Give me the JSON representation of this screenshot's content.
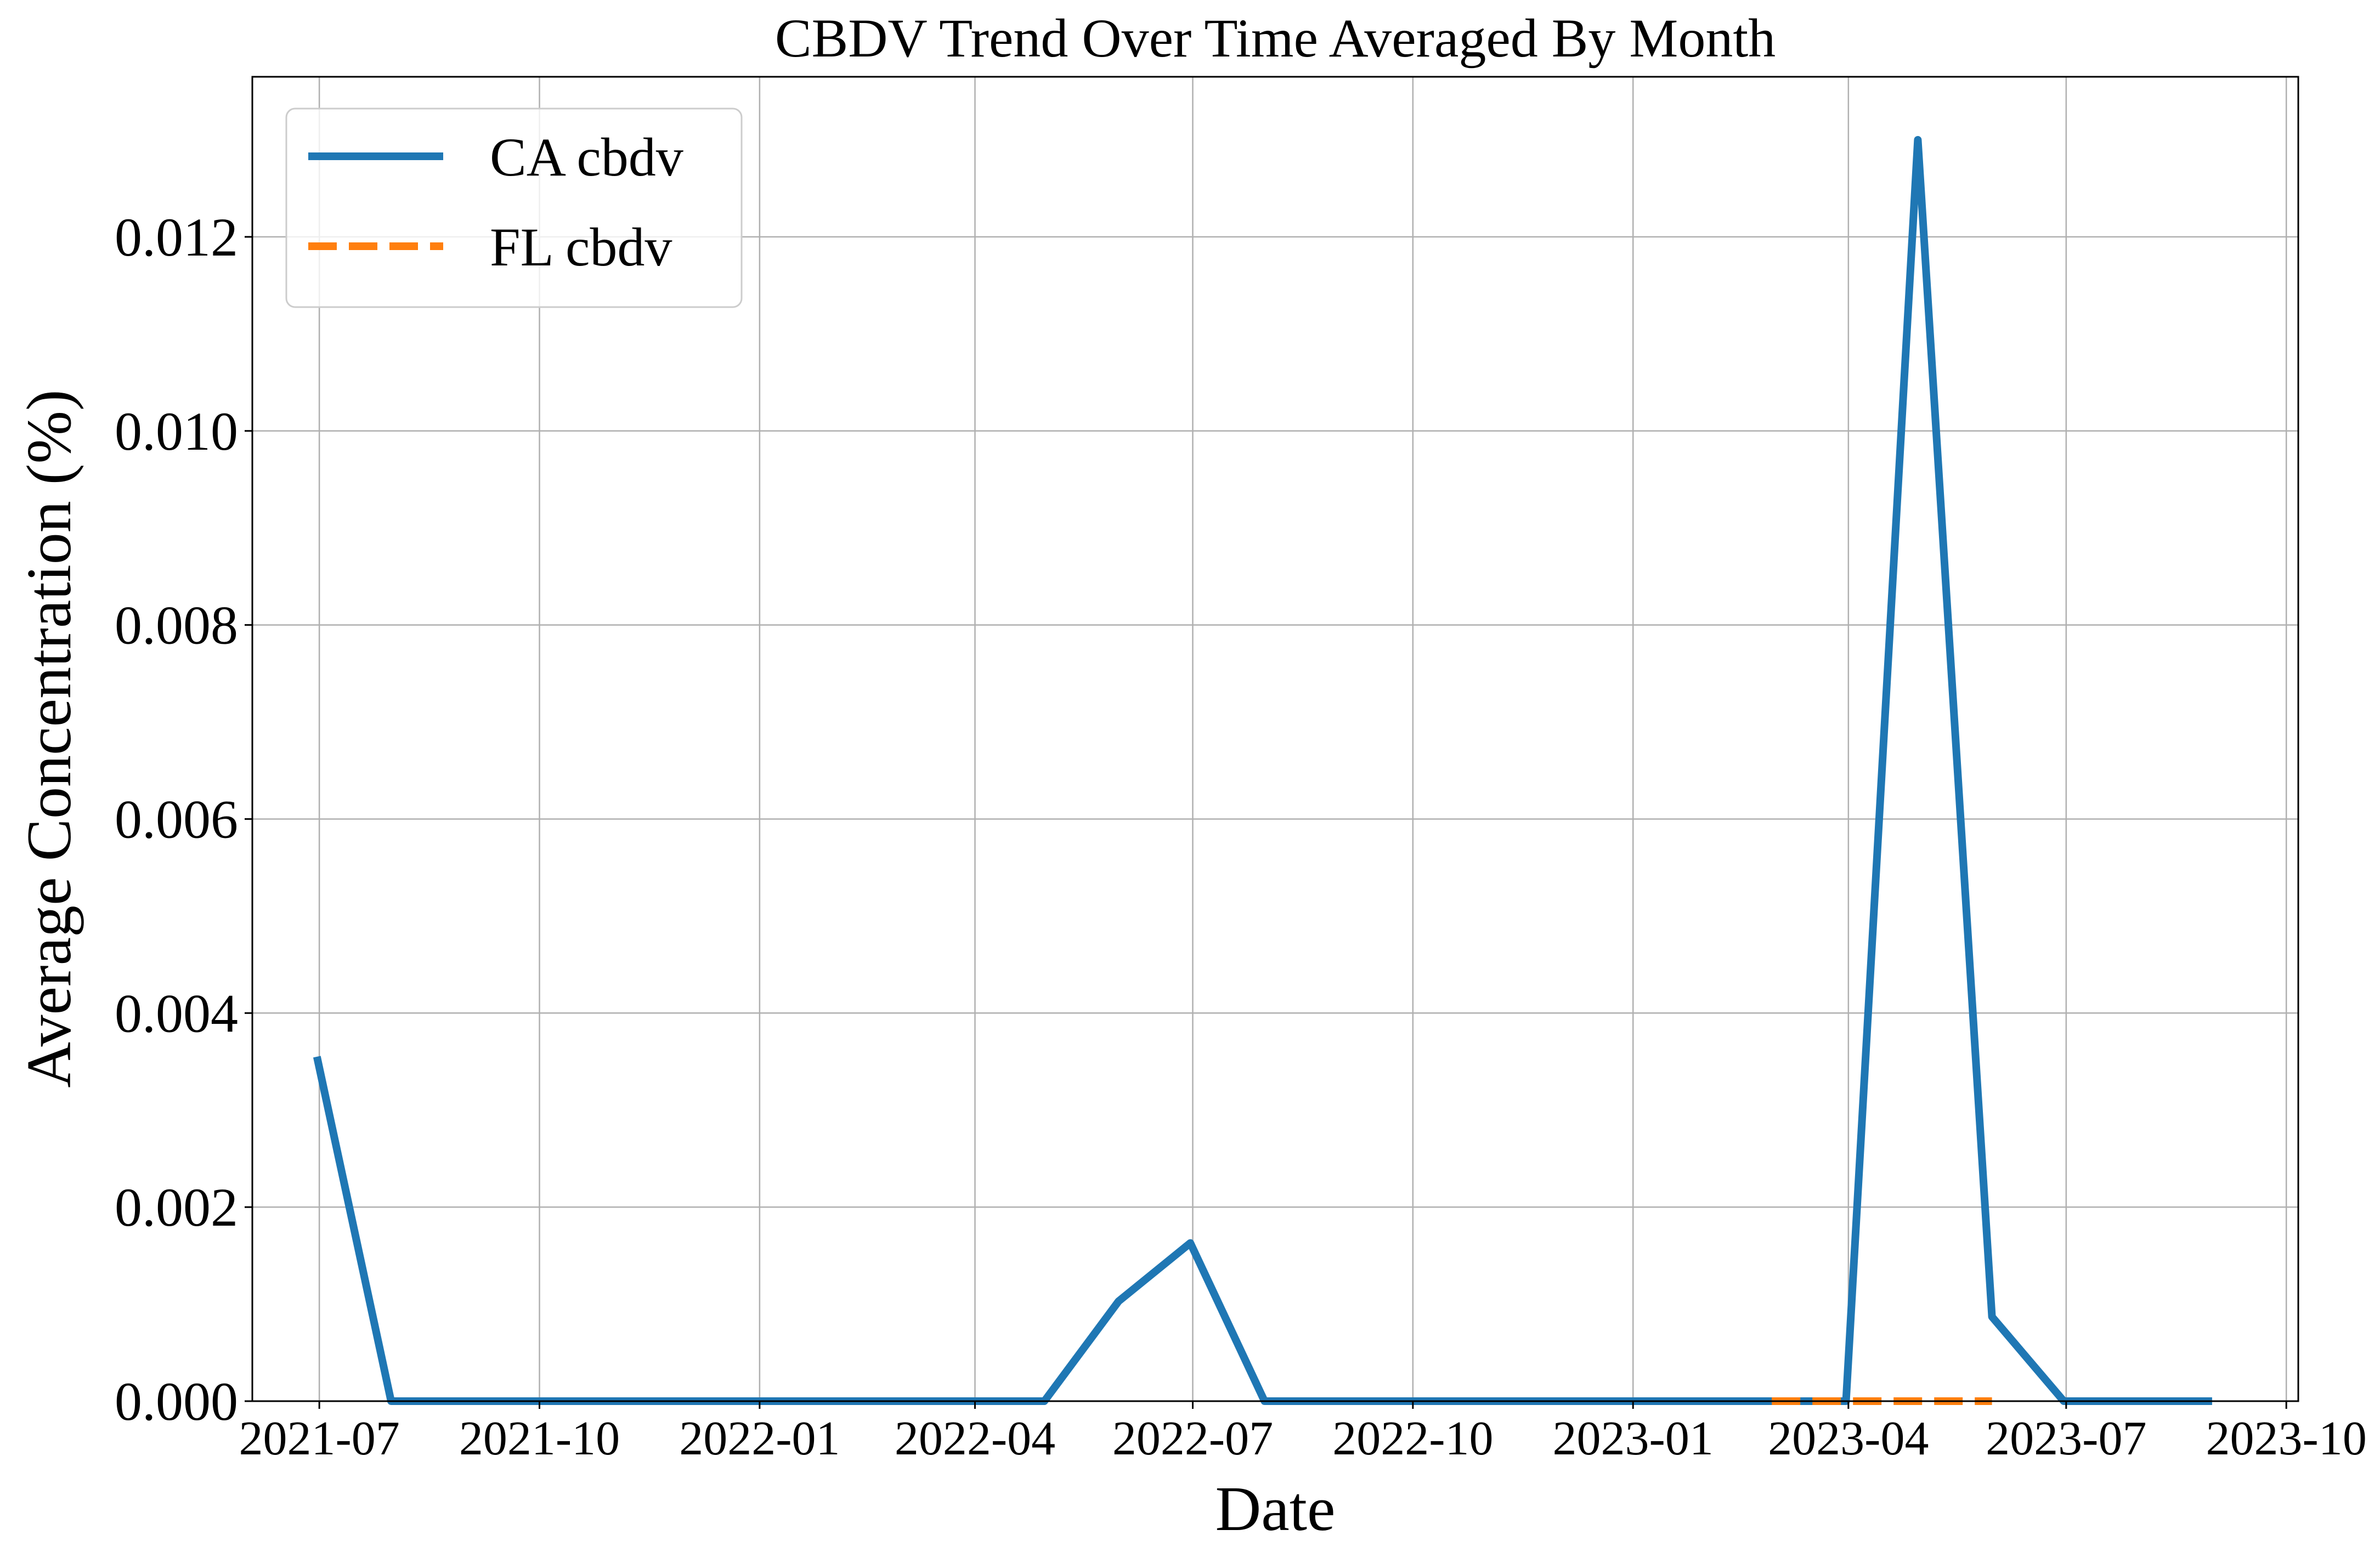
{
  "chart_data": {
    "type": "line",
    "title": "CBDV Trend Over Time Averaged By Month",
    "xlabel": "Date",
    "ylabel": "Average Concentration (%)",
    "xlim": [
      "2021-06-03",
      "2023-10-06"
    ],
    "ylim": [
      0,
      0.01365
    ],
    "x_ticks": [
      "2021-07",
      "2021-10",
      "2022-01",
      "2022-04",
      "2022-07",
      "2022-10",
      "2023-01",
      "2023-04",
      "2023-07",
      "2023-10"
    ],
    "y_ticks": [
      "0.000",
      "0.002",
      "0.004",
      "0.006",
      "0.008",
      "0.010",
      "0.012"
    ],
    "grid": true,
    "legend_position": "top-left",
    "series": [
      {
        "name": "CA cbdv",
        "color": "#1f77b4",
        "style": "solid",
        "x": [
          "2021-06-30",
          "2021-07-31",
          "2021-08-31",
          "2021-09-30",
          "2021-10-31",
          "2021-11-30",
          "2021-12-31",
          "2022-01-31",
          "2022-02-28",
          "2022-03-31",
          "2022-04-30",
          "2022-05-31",
          "2022-06-30",
          "2022-07-31",
          "2022-08-31",
          "2022-09-30",
          "2022-10-31",
          "2022-11-30",
          "2022-12-31",
          "2023-01-31",
          "2023-02-28",
          "2023-03-31",
          "2023-04-30",
          "2023-05-31",
          "2023-06-30",
          "2023-07-31",
          "2023-08-31"
        ],
        "y": [
          0.00355,
          0,
          0,
          0,
          0,
          0,
          0,
          0,
          0,
          0,
          0,
          0.00103,
          0.00163,
          0,
          0,
          0,
          0,
          0,
          0,
          0,
          0,
          0,
          0.013,
          0.00087,
          0,
          0,
          0
        ]
      },
      {
        "name": "FL cbdv",
        "color": "#ff7f0e",
        "style": "dashed",
        "x": [
          "2023-02-28",
          "2023-03-31",
          "2023-04-30",
          "2023-05-31"
        ],
        "y": [
          0,
          0,
          0,
          0
        ]
      }
    ]
  }
}
